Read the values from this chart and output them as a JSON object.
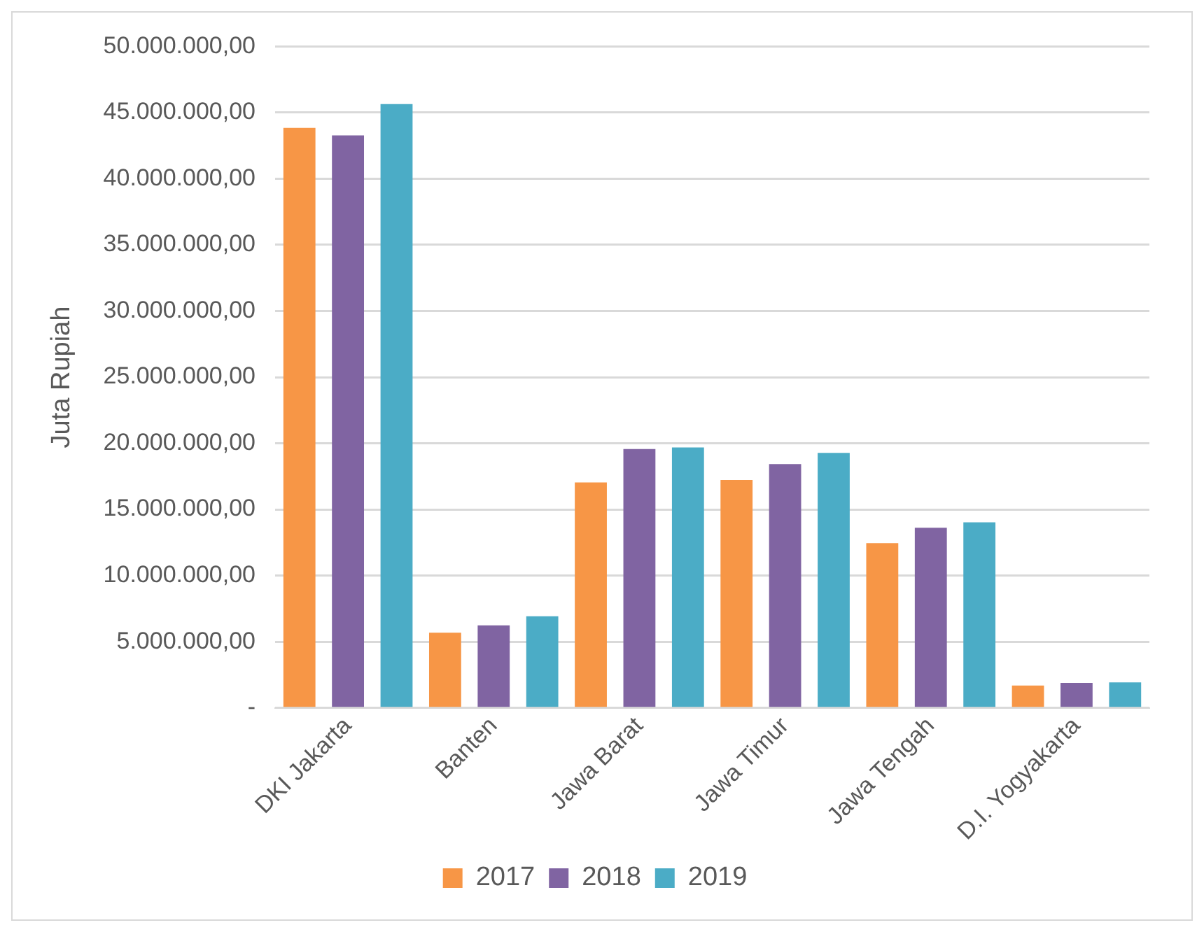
{
  "chart_data": {
    "type": "bar",
    "ylabel": "Juta Rupiah",
    "categories": [
      "DKI Jakarta",
      "Banten",
      "Jawa Barat",
      "Jawa Timur",
      "Jawa Tengah",
      "D.I. Yogyakarta"
    ],
    "series": [
      {
        "name": "2017",
        "color": "#f79646",
        "values": [
          43840000,
          5680000,
          17040000,
          17230000,
          12450000,
          1690000
        ]
      },
      {
        "name": "2018",
        "color": "#8064a2",
        "values": [
          43280000,
          6240000,
          19560000,
          18430000,
          13610000,
          1890000
        ]
      },
      {
        "name": "2019",
        "color": "#4bacc6",
        "values": [
          45640000,
          6920000,
          19680000,
          19280000,
          14020000,
          1930000
        ]
      }
    ],
    "ylim": [
      0,
      50000000
    ],
    "yticks": [
      {
        "value": 0,
        "label": "-"
      },
      {
        "value": 5000000,
        "label": "5.000.000,00"
      },
      {
        "value": 10000000,
        "label": "10.000.000,00"
      },
      {
        "value": 15000000,
        "label": "15.000.000,00"
      },
      {
        "value": 20000000,
        "label": "20.000.000,00"
      },
      {
        "value": 25000000,
        "label": "25.000.000,00"
      },
      {
        "value": 30000000,
        "label": "30.000.000,00"
      },
      {
        "value": 35000000,
        "label": "35.000.000,00"
      },
      {
        "value": 40000000,
        "label": "40.000.000,00"
      },
      {
        "value": 45000000,
        "label": "45.000.000,00"
      },
      {
        "value": 50000000,
        "label": "50.000.000,00"
      }
    ],
    "grid": "y",
    "legend": "bottom"
  }
}
